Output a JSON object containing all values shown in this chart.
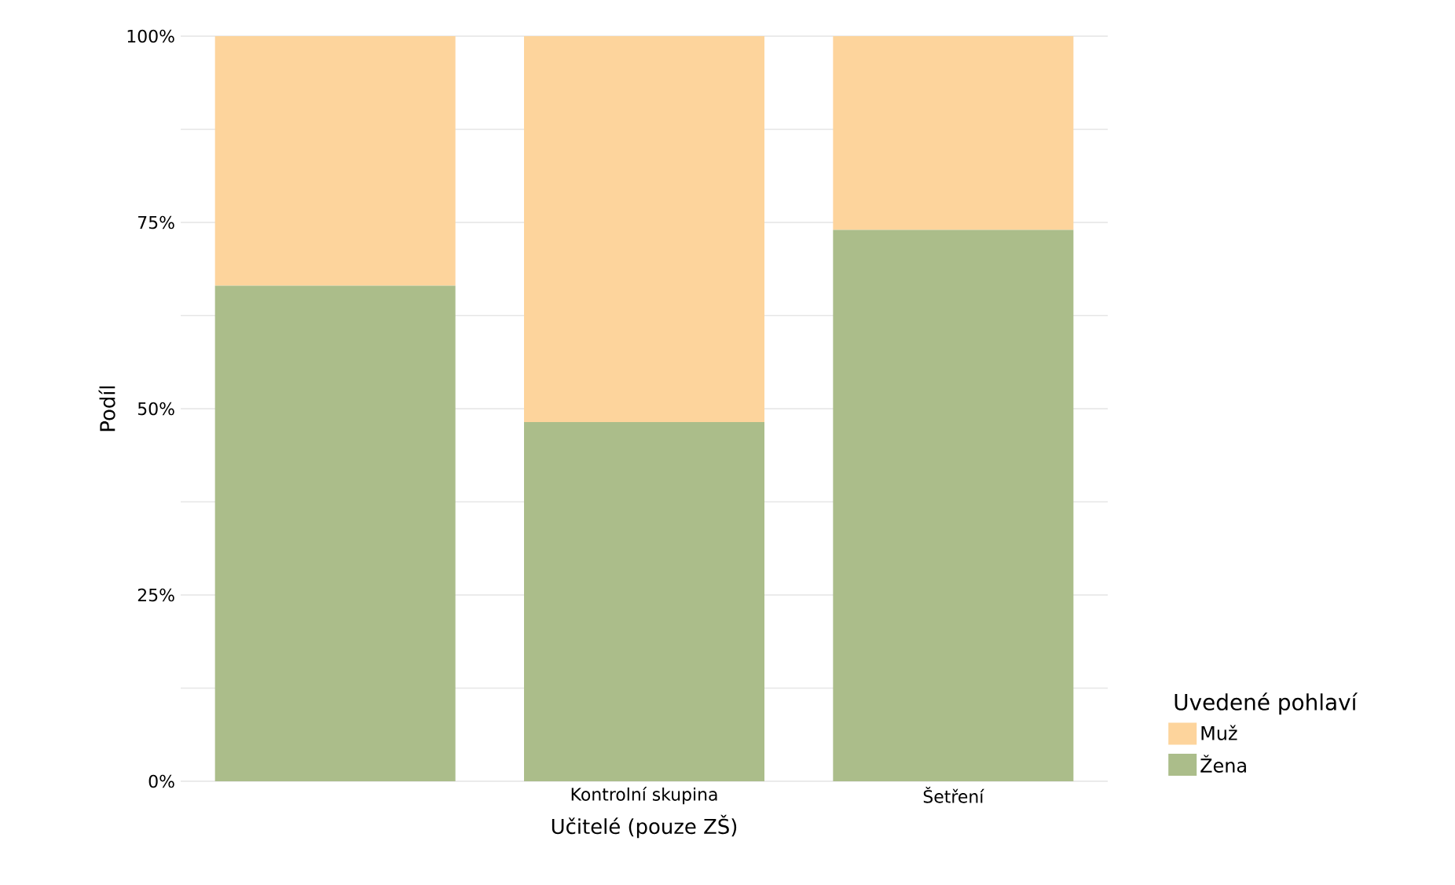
{
  "chart_data": {
    "type": "bar",
    "stacked": true,
    "xlabel": "Učitelé (pouze ZŠ)",
    "ylabel": "Podíl",
    "legend_title": "Uvedené pohlaví",
    "categories": [
      null,
      "Kontrolní skupina",
      "Šetření"
    ],
    "series": [
      {
        "name": "Žena",
        "color": "#abbd8a",
        "values": [
          66.5,
          48.2,
          74
        ]
      },
      {
        "name": "Muž",
        "color": "#fdd49c",
        "values": [
          33.5,
          51.8,
          26
        ]
      }
    ],
    "ylim": [
      0,
      100
    ],
    "yticks": [
      {
        "value": 0,
        "label": "0%"
      },
      {
        "value": 12.5,
        "label": null
      },
      {
        "value": 25,
        "label": "25%"
      },
      {
        "value": 37.5,
        "label": null
      },
      {
        "value": 50,
        "label": "50%"
      },
      {
        "value": 62.5,
        "label": null
      },
      {
        "value": 75,
        "label": "75%"
      },
      {
        "value": 87.5,
        "label": null
      },
      {
        "value": 100,
        "label": "100%"
      }
    ],
    "grid": "y",
    "legend": "right"
  }
}
